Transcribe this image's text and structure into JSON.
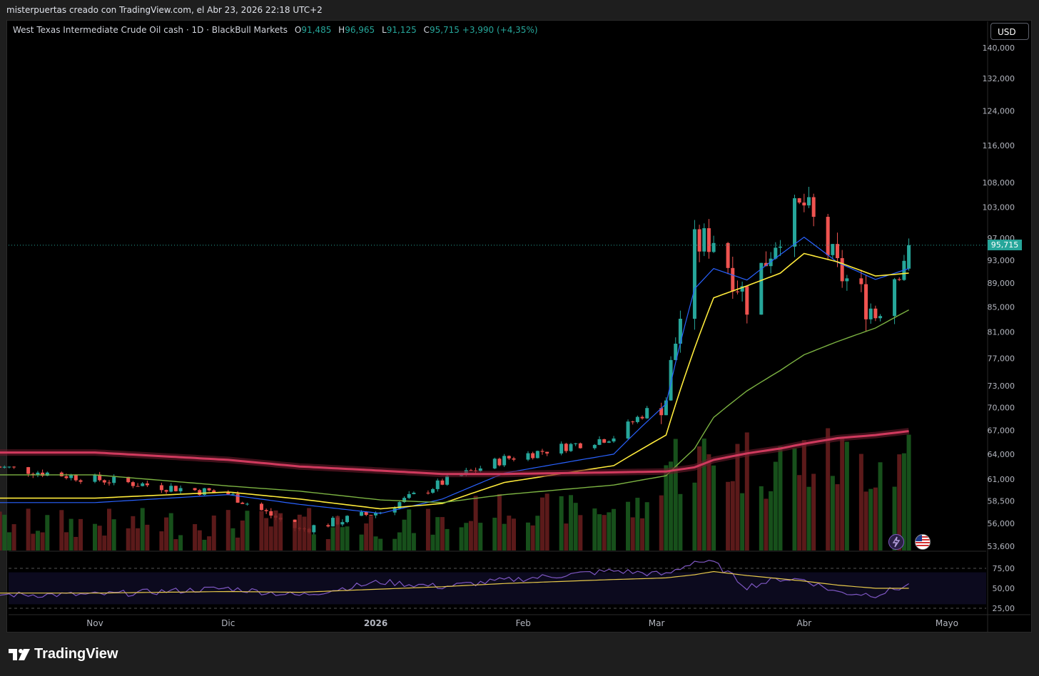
{
  "header": {
    "caption": "misterpuertas creado con TradingView.com, el Abr 23, 2026 22:18 UTC+2"
  },
  "legend": {
    "symbol": "West Texas Intermediate Crude Oil cash · 1D · BlackBull Markets",
    "o_label": "O",
    "o_value": "91,485",
    "h_label": "H",
    "h_value": "96,965",
    "l_label": "L",
    "l_value": "91,125",
    "c_label": "C",
    "c_value": "95,715",
    "change": "+3,990 (+4,35%)"
  },
  "currency_button": "USD",
  "last_price": "95,715",
  "footer": {
    "brand": "TradingView"
  },
  "icons": {
    "logo": "tradingview-logo-icon",
    "lightning": "lightning-icon",
    "flag": "us-flag-icon"
  },
  "colors": {
    "up": "#26a69a",
    "down": "#ef5350",
    "ma_fast": "#2962ff",
    "ma_mid": "#ffeb3b",
    "ma_slow": "#7cb342",
    "ma_long": "#d03a5e",
    "rsi": "#7e57c2"
  },
  "chart_data": [
    {
      "type": "candlestick",
      "title": "West Texas Intermediate Crude Oil cash · 1D · BlackBull Markets",
      "y_scale": "log",
      "ylim": [
        53.0,
        142.0
      ],
      "yticks": [
        140,
        132,
        124,
        116,
        108,
        103,
        97,
        93,
        89,
        85,
        81,
        77,
        73,
        70,
        67,
        64,
        61,
        58.5,
        56,
        53.6
      ],
      "ytick_labels": [
        "140,000",
        "132,000",
        "124,000",
        "116,000",
        "108,000",
        "103,000",
        "97,000",
        "93,000",
        "89,000",
        "85,000",
        "81,000",
        "77,000",
        "73,000",
        "70,000",
        "67,000",
        "64,000",
        "61,000",
        "58,500",
        "56,000",
        "53,600"
      ],
      "xticks": [
        "Nov",
        "Dic",
        "2026",
        "Feb",
        "Mar",
        "Abr",
        "Mayo"
      ],
      "last_close": 95.715,
      "ohlc_sampled": [
        {
          "date": "2025-11-03",
          "close": 61.0
        },
        {
          "date": "2025-12-01",
          "close": 59.3
        },
        {
          "date": "2025-12-16",
          "close": 55.3
        },
        {
          "date": "2026-01-02",
          "close": 57.3
        },
        {
          "date": "2026-01-15",
          "close": 60.6
        },
        {
          "date": "2026-01-28",
          "close": 63.4
        },
        {
          "date": "2026-02-20",
          "close": 66.2
        },
        {
          "date": "2026-03-03",
          "close": 71.5
        },
        {
          "date": "2026-03-09",
          "close": 95.5
        },
        {
          "date": "2026-03-13",
          "close": 97.2
        },
        {
          "date": "2026-03-20",
          "close": 86.0
        },
        {
          "date": "2026-03-27",
          "close": 98.8
        },
        {
          "date": "2026-04-01",
          "close": 103.3
        },
        {
          "date": "2026-04-08",
          "close": 91.2
        },
        {
          "date": "2026-04-16",
          "close": 84.0
        },
        {
          "date": "2026-04-23",
          "open": 91.485,
          "high": 96.965,
          "low": 91.125,
          "close": 95.715
        }
      ],
      "series": [
        {
          "name": "MA fast",
          "values": [
            58.3,
            59.2,
            58.1,
            57.1,
            58.7,
            61.7,
            64.0,
            70.5,
            88.0,
            91.5,
            89.5,
            94.0,
            97.2,
            92.6,
            89.6,
            91.5
          ]
        },
        {
          "name": "MA medium",
          "values": [
            58.8,
            59.5,
            58.7,
            57.6,
            58.2,
            60.6,
            62.6,
            66.4,
            78.5,
            86.5,
            88.5,
            90.7,
            94.2,
            92.7,
            90.2,
            90.7
          ]
        },
        {
          "name": "MA slow",
          "values": [
            61.5,
            60.2,
            59.6,
            58.6,
            58.3,
            59.2,
            60.3,
            61.4,
            64.7,
            68.7,
            72.3,
            75.2,
            77.5,
            79.5,
            81.6,
            84.5
          ]
        },
        {
          "name": "MA long",
          "values": [
            64.2,
            63.3,
            62.5,
            62.0,
            61.6,
            61.6,
            61.8,
            61.9,
            62.4,
            63.3,
            64.1,
            64.7,
            65.3,
            66.0,
            66.4,
            66.9
          ]
        }
      ]
    },
    {
      "type": "line",
      "title": "RSI",
      "ylim": [
        25,
        75
      ],
      "yticks": [
        75,
        50,
        25
      ],
      "ytick_labels": [
        "75,00",
        "50,00",
        "25,00"
      ],
      "series": [
        {
          "name": "RSI",
          "values": [
            42,
            50,
            41,
            58,
            52,
            60,
            72,
            67,
            84,
            82,
            52,
            62,
            61,
            45,
            42,
            54
          ]
        },
        {
          "name": "RSI MA",
          "values": [
            44,
            46,
            45,
            49,
            52,
            56,
            61,
            63,
            67,
            71,
            66,
            62,
            59,
            54,
            50,
            50
          ]
        }
      ]
    }
  ]
}
